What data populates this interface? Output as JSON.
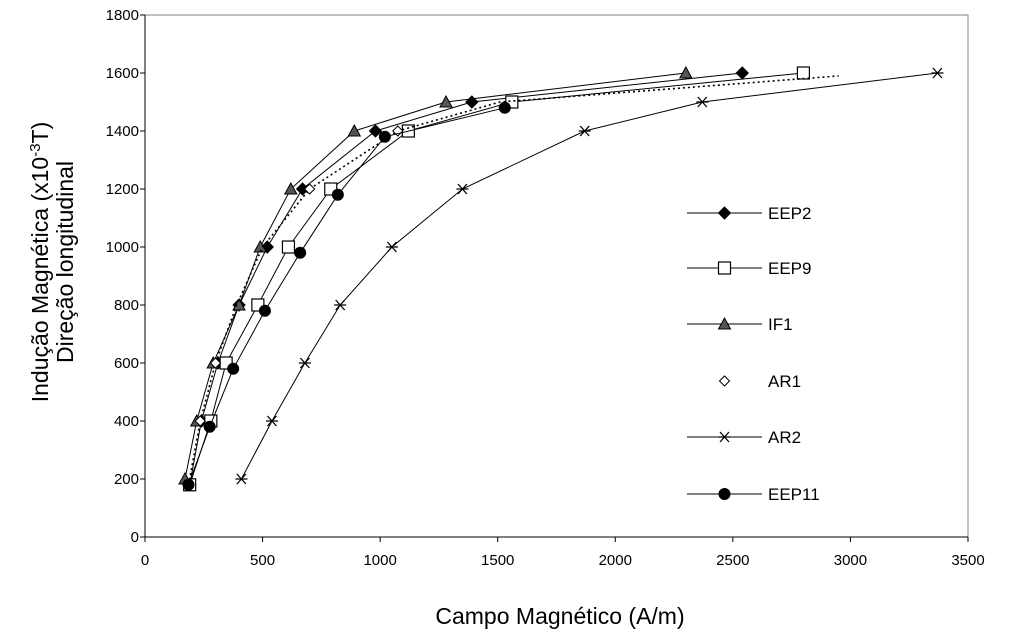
{
  "chart_data": {
    "type": "line",
    "title": "",
    "xlabel": "Campo Magnético (A/m)",
    "ylabel_lines": [
      "Indução Magnética (x10",
      "-3",
      "T)",
      "Direção longitudinal"
    ],
    "xlim": [
      0,
      3500
    ],
    "ylim": [
      0,
      1800
    ],
    "x_ticks": [
      "0",
      "500",
      "1000",
      "1500",
      "2000",
      "2500",
      "3000",
      "3500"
    ],
    "y_ticks": [
      "0",
      "200",
      "400",
      "600",
      "800",
      "1000",
      "1200",
      "1400",
      "1600",
      "1800"
    ],
    "grid": false,
    "legend_placement": "right",
    "series": [
      {
        "name": "EEP2",
        "marker": "diamond-filled",
        "line": "solid",
        "x": [
          190,
          240,
          310,
          400,
          520,
          670,
          980,
          1390,
          2540
        ],
        "y": [
          180,
          400,
          600,
          800,
          1000,
          1200,
          1400,
          1500,
          1600
        ]
      },
      {
        "name": "EEP9",
        "marker": "square-open",
        "line": "solid",
        "x": [
          190,
          280,
          345,
          480,
          610,
          790,
          1120,
          1560,
          2800
        ],
        "y": [
          180,
          400,
          600,
          800,
          1000,
          1200,
          1400,
          1500,
          1600
        ]
      },
      {
        "name": "IF1",
        "marker": "triangle-filled",
        "line": "solid",
        "x": [
          170,
          220,
          290,
          400,
          490,
          620,
          890,
          1280,
          2300
        ],
        "y": [
          200,
          400,
          600,
          800,
          1000,
          1200,
          1400,
          1500,
          1600
        ]
      },
      {
        "name": "AR1",
        "marker": "diamond-open",
        "line": "dotted",
        "x": [
          185,
          235,
          300,
          390,
          500,
          700,
          1075,
          1510,
          2950
        ],
        "y": [
          180,
          400,
          600,
          800,
          1000,
          1200,
          1400,
          1500,
          1590
        ]
      },
      {
        "name": "AR2",
        "marker": "asterisk",
        "line": "solid",
        "x": [
          410,
          540,
          680,
          830,
          1050,
          1350,
          1870,
          2370,
          3370
        ],
        "y": [
          200,
          400,
          600,
          800,
          1000,
          1200,
          1400,
          1500,
          1600
        ]
      },
      {
        "name": "EEP11",
        "marker": "circle-filled",
        "line": "solid",
        "x": [
          185,
          275,
          375,
          510,
          660,
          820,
          1020,
          1530
        ],
        "y": [
          180,
          380,
          580,
          780,
          980,
          1180,
          1380,
          1480
        ]
      }
    ]
  }
}
